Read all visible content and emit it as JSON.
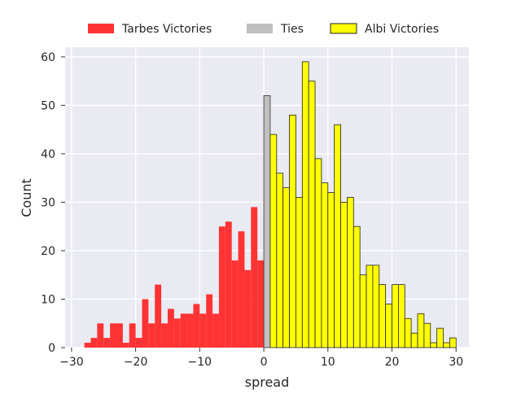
{
  "chart_data": {
    "type": "bar",
    "title": "",
    "xlabel": "spread",
    "ylabel": "Count",
    "xlim": [
      -31,
      32
    ],
    "ylim": [
      0,
      62
    ],
    "x_ticks": [
      -30,
      -20,
      -10,
      0,
      10,
      20,
      30
    ],
    "x_tick_labels": [
      "−30",
      "−20",
      "−10",
      "0",
      "10",
      "20",
      "30"
    ],
    "y_ticks": [
      0,
      10,
      20,
      30,
      40,
      50,
      60
    ],
    "y_tick_labels": [
      "0",
      "10",
      "20",
      "30",
      "40",
      "50",
      "60"
    ],
    "grid": true,
    "legend_position": "top-center",
    "series": [
      {
        "name": "Tarbes Victories",
        "color": "#ff3333",
        "edgecolor": "",
        "bin_width": 1,
        "bins": [
          {
            "x": -28,
            "count": 1
          },
          {
            "x": -27,
            "count": 2
          },
          {
            "x": -26,
            "count": 5
          },
          {
            "x": -25,
            "count": 2
          },
          {
            "x": -24,
            "count": 5
          },
          {
            "x": -23,
            "count": 5
          },
          {
            "x": -22,
            "count": 1
          },
          {
            "x": -21,
            "count": 5
          },
          {
            "x": -20,
            "count": 2
          },
          {
            "x": -19,
            "count": 10
          },
          {
            "x": -18,
            "count": 5
          },
          {
            "x": -17,
            "count": 13
          },
          {
            "x": -16,
            "count": 5
          },
          {
            "x": -15,
            "count": 8
          },
          {
            "x": -14,
            "count": 6
          },
          {
            "x": -13,
            "count": 7
          },
          {
            "x": -12,
            "count": 7
          },
          {
            "x": -11,
            "count": 9
          },
          {
            "x": -10,
            "count": 7
          },
          {
            "x": -9,
            "count": 11
          },
          {
            "x": -8,
            "count": 7
          },
          {
            "x": -7,
            "count": 25
          },
          {
            "x": -6,
            "count": 26
          },
          {
            "x": -5,
            "count": 18
          },
          {
            "x": -4,
            "count": 24
          },
          {
            "x": -3,
            "count": 16
          },
          {
            "x": -2,
            "count": 29
          },
          {
            "x": -1,
            "count": 18
          }
        ]
      },
      {
        "name": "Ties",
        "color": "#c0c0c0",
        "edgecolor": "#333333",
        "bin_width": 1,
        "bins": [
          {
            "x": 0,
            "count": 52
          }
        ]
      },
      {
        "name": "Albi Victories",
        "color": "#ffff00",
        "edgecolor": "#222222",
        "bin_width": 1,
        "bins": [
          {
            "x": 1,
            "count": 44
          },
          {
            "x": 2,
            "count": 36
          },
          {
            "x": 3,
            "count": 33
          },
          {
            "x": 4,
            "count": 48
          },
          {
            "x": 5,
            "count": 31
          },
          {
            "x": 6,
            "count": 59
          },
          {
            "x": 7,
            "count": 55
          },
          {
            "x": 8,
            "count": 39
          },
          {
            "x": 9,
            "count": 34
          },
          {
            "x": 10,
            "count": 32
          },
          {
            "x": 11,
            "count": 46
          },
          {
            "x": 12,
            "count": 30
          },
          {
            "x": 13,
            "count": 31
          },
          {
            "x": 14,
            "count": 25
          },
          {
            "x": 15,
            "count": 15
          },
          {
            "x": 16,
            "count": 17
          },
          {
            "x": 17,
            "count": 17
          },
          {
            "x": 18,
            "count": 13
          },
          {
            "x": 19,
            "count": 9
          },
          {
            "x": 20,
            "count": 13
          },
          {
            "x": 21,
            "count": 13
          },
          {
            "x": 22,
            "count": 6
          },
          {
            "x": 23,
            "count": 3
          },
          {
            "x": 24,
            "count": 7
          },
          {
            "x": 25,
            "count": 5
          },
          {
            "x": 26,
            "count": 1
          },
          {
            "x": 27,
            "count": 4
          },
          {
            "x": 28,
            "count": 1
          },
          {
            "x": 29,
            "count": 2
          }
        ]
      }
    ]
  }
}
